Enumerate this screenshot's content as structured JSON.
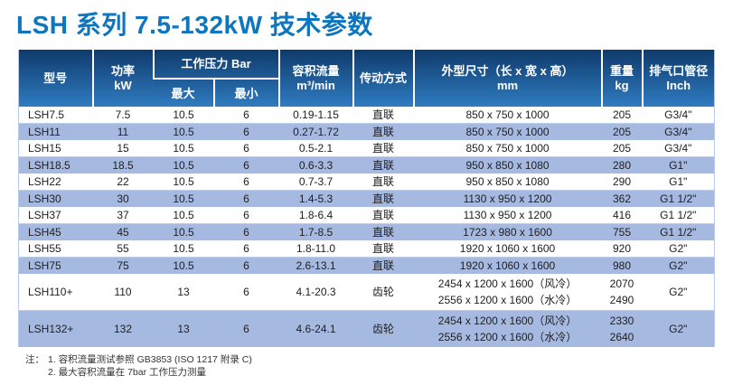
{
  "page": {
    "title": "LSH 系列 7.5-132kW 技术参数"
  },
  "colors": {
    "title_blue": "#0d76bf",
    "header_gradient_top": "#0f3a6b",
    "header_gradient_mid": "#1f5b96",
    "header_gradient_bottom": "#2f7cc1",
    "stripe_blue": "#a6b9e0"
  },
  "table": {
    "headers": {
      "model": "型号",
      "power_l1": "功率",
      "power_l2": "kW",
      "pressure_group": "工作压力 Bar",
      "pressure_max": "最大",
      "pressure_min": "最小",
      "flow_l1": "容积流量",
      "flow_l2": "m³/min",
      "drive": "传动方式",
      "dims_l1": "外型尺寸（长 x 宽 x 高）",
      "dims_l2": "mm",
      "weight_l1": "重量",
      "weight_l2": "kg",
      "pipe_l1": "排气口管径",
      "pipe_l2": "Inch"
    },
    "rows": [
      {
        "model": "LSH7.5",
        "power": "7.5",
        "pmax": "10.5",
        "pmin": "6",
        "flow": "0.19-1.15",
        "drive": "直联",
        "dims": [
          "850 x 750 x 1000"
        ],
        "weight": [
          "205"
        ],
        "pipe": "G3/4\""
      },
      {
        "model": "LSH11",
        "power": "11",
        "pmax": "10.5",
        "pmin": "6",
        "flow": "0.27-1.72",
        "drive": "直联",
        "dims": [
          "850 x 750 x 1000"
        ],
        "weight": [
          "205"
        ],
        "pipe": "G3/4\""
      },
      {
        "model": "LSH15",
        "power": "15",
        "pmax": "10.5",
        "pmin": "6",
        "flow": "0.5-2.1",
        "drive": "直联",
        "dims": [
          "850 x 750 x 1000"
        ],
        "weight": [
          "205"
        ],
        "pipe": "G3/4\""
      },
      {
        "model": "LSH18.5",
        "power": "18.5",
        "pmax": "10.5",
        "pmin": "6",
        "flow": "0.6-3.3",
        "drive": "直联",
        "dims": [
          "950 x 850 x 1080"
        ],
        "weight": [
          "280"
        ],
        "pipe": "G1\""
      },
      {
        "model": "LSH22",
        "power": "22",
        "pmax": "10.5",
        "pmin": "6",
        "flow": "0.7-3.7",
        "drive": "直联",
        "dims": [
          "950 x 850 x 1080"
        ],
        "weight": [
          "290"
        ],
        "pipe": "G1\""
      },
      {
        "model": "LSH30",
        "power": "30",
        "pmax": "10.5",
        "pmin": "6",
        "flow": "1.4-5.3",
        "drive": "直联",
        "dims": [
          "1130 x 950 x 1200"
        ],
        "weight": [
          "362"
        ],
        "pipe": "G1 1/2\""
      },
      {
        "model": "LSH37",
        "power": "37",
        "pmax": "10.5",
        "pmin": "6",
        "flow": "1.8-6.4",
        "drive": "直联",
        "dims": [
          "1130 x 950 x 1200"
        ],
        "weight": [
          "416"
        ],
        "pipe": "G1 1/2\""
      },
      {
        "model": "LSH45",
        "power": "45",
        "pmax": "10.5",
        "pmin": "6",
        "flow": "1.7-8.5",
        "drive": "直联",
        "dims": [
          "1723 x 980 x 1600"
        ],
        "weight": [
          "755"
        ],
        "pipe": "G1 1/2\""
      },
      {
        "model": "LSH55",
        "power": "55",
        "pmax": "10.5",
        "pmin": "6",
        "flow": "1.8-11.0",
        "drive": "直联",
        "dims": [
          "1920 x 1060 x 1600"
        ],
        "weight": [
          "920"
        ],
        "pipe": "G2\""
      },
      {
        "model": "LSH75",
        "power": "75",
        "pmax": "10.5",
        "pmin": "6",
        "flow": "2.6-13.1",
        "drive": "直联",
        "dims": [
          "1920 x 1060 x 1600"
        ],
        "weight": [
          "980"
        ],
        "pipe": "G2\""
      },
      {
        "model": "LSH110+",
        "power": "110",
        "pmax": "13",
        "pmin": "6",
        "flow": "4.1-20.3",
        "drive": "齿轮",
        "dims": [
          "2454 x 1200 x 1600（风冷）",
          "2556 x 1200 x 1600（水冷）"
        ],
        "weight": [
          "2070",
          "2490"
        ],
        "pipe": "G2\""
      },
      {
        "model": "LSH132+",
        "power": "132",
        "pmax": "13",
        "pmin": "6",
        "flow": "4.6-24.1",
        "drive": "齿轮",
        "dims": [
          "2454 x 1200 x 1600（风冷）",
          "2556 x 1200 x 1600（水冷）"
        ],
        "weight": [
          "2330",
          "2640"
        ],
        "pipe": "G2\""
      }
    ]
  },
  "notes": {
    "prefix": "注：",
    "items": [
      "1. 容积流量测试参照 GB3853 (ISO 1217 附录 C)",
      "2. 最大容积流量在 7bar 工作压力测量"
    ]
  }
}
